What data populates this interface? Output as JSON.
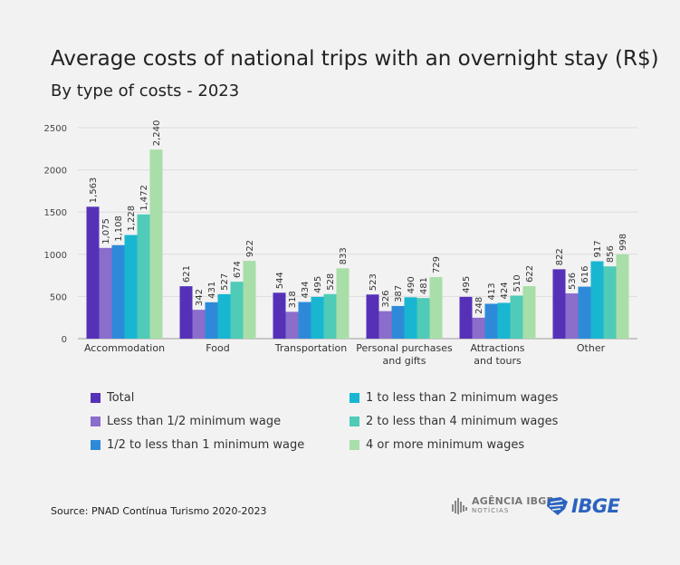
{
  "header": {
    "title": "Average costs of national trips with an overnight stay (R$)",
    "subtitle": "By type of costs - 2023"
  },
  "chart_data": {
    "type": "bar",
    "title": "Average costs of national trips with an overnight stay (R$)",
    "subtitle": "By type of costs - 2023",
    "xlabel": "",
    "ylabel": "",
    "ylim": [
      0,
      2500
    ],
    "yticks": [
      "0",
      "500",
      "1000",
      "1500",
      "2000",
      "2500"
    ],
    "grid": true,
    "legend_position": "bottom",
    "categories": [
      [
        "Accommodation"
      ],
      [
        "Food"
      ],
      [
        "Transportation"
      ],
      [
        "Personal purchases",
        "and gifts"
      ],
      [
        "Attractions",
        "and tours"
      ],
      [
        "Other"
      ]
    ],
    "series": [
      {
        "name": "Total",
        "color": "#5631b8",
        "values": [
          1563,
          621,
          544,
          523,
          495,
          822
        ],
        "labels": [
          "1,563",
          "621",
          "544",
          "523",
          "495",
          "822"
        ]
      },
      {
        "name": "Less than 1/2 minimum wage",
        "color": "#8b6dcc",
        "values": [
          1075,
          342,
          318,
          326,
          248,
          536
        ],
        "labels": [
          "1,075",
          "342",
          "318",
          "326",
          "248",
          "536"
        ]
      },
      {
        "name": "1/2 to less than 1 minimum wage",
        "color": "#2e8ad8",
        "values": [
          1108,
          431,
          434,
          387,
          413,
          616
        ],
        "labels": [
          "1,108",
          "431",
          "434",
          "387",
          "413",
          "616"
        ]
      },
      {
        "name": "1 to less than 2 minimum wages",
        "color": "#19b6d2",
        "values": [
          1228,
          527,
          495,
          490,
          424,
          917
        ],
        "labels": [
          "1,228",
          "527",
          "495",
          "490",
          "424",
          "917"
        ]
      },
      {
        "name": "2 to less than 4 minimum wages",
        "color": "#4fcbb8",
        "values": [
          1472,
          674,
          528,
          481,
          510,
          856
        ],
        "labels": [
          "1,472",
          "674",
          "528",
          "481",
          "510",
          "856"
        ]
      },
      {
        "name": "4 or more minimum wages",
        "color": "#a8dea8",
        "values": [
          2240,
          922,
          833,
          729,
          622,
          998
        ],
        "labels": [
          "2,240",
          "922",
          "833",
          "729",
          "622",
          "998"
        ]
      }
    ]
  },
  "legend": {
    "items": [
      {
        "label": "Total",
        "color": "#5631b8"
      },
      {
        "label": "Less than 1/2 minimum wage",
        "color": "#8b6dcc"
      },
      {
        "label": "1/2 to less than 1 minimum wage",
        "color": "#2e8ad8"
      },
      {
        "label": "1 to less than 2 minimum wages",
        "color": "#19b6d2"
      },
      {
        "label": "2 to less than 4 minimum wages",
        "color": "#4fcbb8"
      },
      {
        "label": "4 or more minimum wages",
        "color": "#a8dea8"
      }
    ]
  },
  "footer": {
    "source": "Source: PNAD Contínua Turismo 2020-2023",
    "agencia_line1": "AGÊNCIA IBGE",
    "agencia_line2": "NOTÍCIAS",
    "ibge_logo": "IBGE"
  }
}
